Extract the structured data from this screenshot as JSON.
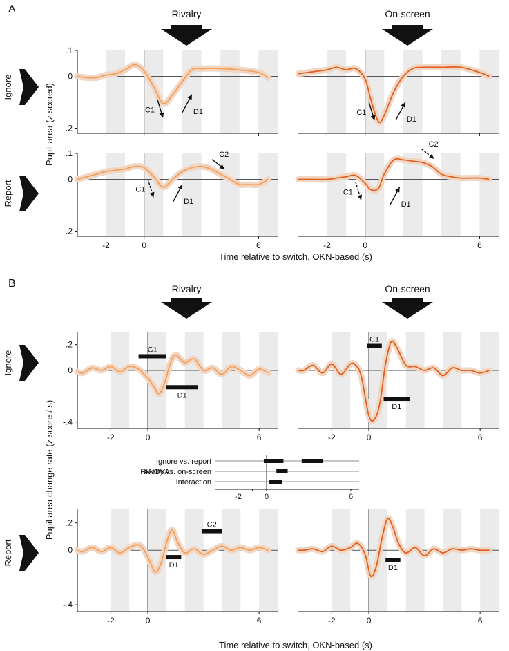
{
  "panel_labels": [
    "A",
    "B"
  ],
  "column_titles": [
    "Rivalry",
    "On-screen"
  ],
  "row_labels": [
    "Ignore",
    "Report"
  ],
  "colors": {
    "rivalry_line": "#f2a05a",
    "onscreen_line": "#e0601f",
    "band": "#f1d6c4",
    "stripe": "#ebebeb",
    "black": "#111111"
  },
  "anova": {
    "prefix": "ANOVA:",
    "rows": [
      "Ignore vs. report",
      "Rivalry vs. on-screen",
      "Interaction"
    ],
    "x_ticks": [
      "-2",
      "0",
      "6"
    ],
    "bars": [
      [
        [
          -0.2,
          1.2
        ],
        [
          2.5,
          4.0
        ]
      ],
      [
        [
          0.7,
          1.5
        ]
      ],
      [
        [
          0.2,
          1.1
        ]
      ]
    ]
  },
  "chart_data": [
    {
      "id": "A-rivalry-ignore",
      "type": "line",
      "panel": "A",
      "column": "Rivalry",
      "row": "Ignore",
      "xlabel": "Time relative to switch, OKN-based (s)",
      "ylabel": "Pupil area (z scored)",
      "xlim": [
        -3.5,
        7
      ],
      "ylim": [
        -0.22,
        0.1
      ],
      "x_ticks": [
        -2,
        0,
        6
      ],
      "x_tick_labels": [
        "",
        "",
        ""
      ],
      "y_ticks": [
        0.1,
        0,
        -0.2
      ],
      "y_tick_labels": [
        ".1",
        "0",
        "-.2"
      ],
      "series": [
        {
          "name": "Rivalry ignore",
          "x": [
            -3.5,
            -3,
            -2.5,
            -2,
            -1.5,
            -1,
            -0.5,
            0,
            0.5,
            1,
            1.5,
            2,
            2.5,
            3,
            4,
            5,
            6,
            6.5
          ],
          "y": [
            0,
            -0.005,
            -0.005,
            0.005,
            0.01,
            0.025,
            0.045,
            0.02,
            -0.04,
            -0.105,
            -0.07,
            -0.02,
            0.025,
            0.03,
            0.03,
            0.025,
            0.015,
            -0.005
          ]
        }
      ],
      "annotations": [
        {
          "label": "C1",
          "x": 0.7,
          "y": -0.09,
          "style": "solid",
          "dir": "down"
        },
        {
          "label": "D1",
          "x": 2.0,
          "y": -0.07,
          "style": "solid",
          "dir": "up"
        }
      ]
    },
    {
      "id": "A-onscreen-ignore",
      "type": "line",
      "panel": "A",
      "column": "On-screen",
      "row": "Ignore",
      "xlabel": "Time relative to switch, OKN-based (s)",
      "ylabel": "",
      "xlim": [
        -3.5,
        7
      ],
      "ylim": [
        -0.22,
        0.1
      ],
      "x_ticks": [
        -2,
        0,
        6
      ],
      "x_tick_labels": [
        "",
        "",
        ""
      ],
      "y_ticks": [],
      "y_tick_labels": [],
      "series": [
        {
          "name": "On-screen ignore",
          "x": [
            -3.5,
            -3,
            -2.5,
            -2,
            -1.5,
            -1,
            -0.5,
            0,
            0.3,
            0.7,
            1,
            1.5,
            2,
            2.5,
            3,
            4,
            5,
            6,
            6.5
          ],
          "y": [
            0.01,
            0.015,
            0.02,
            0.025,
            0.035,
            0.025,
            0.03,
            -0.01,
            -0.09,
            -0.175,
            -0.15,
            -0.06,
            0.0,
            0.03,
            0.035,
            0.035,
            0.035,
            0.015,
            0.0
          ]
        }
      ],
      "annotations": [
        {
          "label": "C1",
          "x": 0.2,
          "y": -0.1,
          "style": "solid",
          "dir": "down"
        },
        {
          "label": "D1",
          "x": 1.6,
          "y": -0.1,
          "style": "solid",
          "dir": "up"
        }
      ]
    },
    {
      "id": "A-rivalry-report",
      "type": "line",
      "panel": "A",
      "column": "Rivalry",
      "row": "Report",
      "xlabel": "Time relative to switch, OKN-based (s)",
      "ylabel": "",
      "xlim": [
        -3.5,
        7
      ],
      "ylim": [
        -0.22,
        0.1
      ],
      "x_ticks": [
        -2,
        0,
        6
      ],
      "x_tick_labels": [
        "-2",
        "0",
        "6"
      ],
      "y_ticks": [
        0.1,
        0,
        -0.2
      ],
      "y_tick_labels": [
        ".1",
        "0",
        "-.2"
      ],
      "series": [
        {
          "name": "Rivalry report",
          "x": [
            -3.5,
            -3,
            -2.5,
            -2,
            -1.5,
            -1,
            -0.5,
            0,
            0.5,
            1,
            1.5,
            2,
            2.5,
            3,
            3.5,
            4,
            4.5,
            5,
            5.5,
            6,
            6.5
          ],
          "y": [
            0,
            0.01,
            0.02,
            0.03,
            0.035,
            0.04,
            0.05,
            0.045,
            0.01,
            -0.03,
            0.0,
            0.03,
            0.045,
            0.05,
            0.04,
            0.02,
            0.0,
            -0.02,
            -0.02,
            -0.02,
            0.0
          ]
        }
      ],
      "annotations": [
        {
          "label": "C1",
          "x": 0.2,
          "y": 0.0,
          "style": "dashed",
          "dir": "down"
        },
        {
          "label": "D1",
          "x": 1.5,
          "y": -0.02,
          "style": "solid",
          "dir": "up"
        },
        {
          "label": "C2",
          "x": 4.0,
          "y": 0.05,
          "style": "solid",
          "dir": "down"
        }
      ]
    },
    {
      "id": "A-onscreen-report",
      "type": "line",
      "panel": "A",
      "column": "On-screen",
      "row": "Report",
      "xlabel": "Time relative to switch, OKN-based (s)",
      "ylabel": "",
      "xlim": [
        -3.5,
        7
      ],
      "ylim": [
        -0.22,
        0.1
      ],
      "x_ticks": [
        -2,
        0,
        6
      ],
      "x_tick_labels": [
        "-2",
        "0",
        "6"
      ],
      "y_ticks": [],
      "y_tick_labels": [],
      "series": [
        {
          "name": "On-screen report",
          "x": [
            -3.5,
            -3,
            -2,
            -1.5,
            -1,
            -0.5,
            0,
            0.3,
            0.7,
            1,
            1.5,
            2,
            2.5,
            3,
            3.5,
            4,
            4.5,
            5,
            5.5,
            6,
            6.5
          ],
          "y": [
            0,
            0,
            0,
            0.005,
            0.01,
            0.015,
            -0.015,
            -0.04,
            -0.035,
            0.02,
            0.075,
            0.075,
            0.07,
            0.065,
            0.05,
            0.02,
            0.01,
            0.005,
            0.005,
            0.005,
            0.0
          ]
        }
      ],
      "annotations": [
        {
          "label": "C1",
          "x": -0.5,
          "y": -0.01,
          "style": "dashed",
          "dir": "down"
        },
        {
          "label": "D1",
          "x": 1.3,
          "y": -0.03,
          "style": "solid",
          "dir": "up"
        },
        {
          "label": "C2",
          "x": 3.4,
          "y": 0.09,
          "style": "dashed",
          "dir": "down"
        }
      ]
    },
    {
      "id": "B-rivalry-ignore",
      "type": "line",
      "panel": "B",
      "column": "Rivalry",
      "row": "Ignore",
      "xlabel": "Time relative to switch, OKN-based (s)",
      "ylabel": "Pupil area change rate (z score / s)",
      "xlim": [
        -3.8,
        7
      ],
      "ylim": [
        -0.45,
        0.3
      ],
      "x_ticks": [
        -2,
        0,
        6
      ],
      "x_tick_labels": [
        "-2",
        "0",
        "6"
      ],
      "y_ticks": [
        0.2,
        0,
        -0.4
      ],
      "y_tick_labels": [
        ".2",
        "0",
        "-.4"
      ],
      "series": [
        {
          "name": "Rivalry ignore rate",
          "x": [
            -3.8,
            -3.5,
            -3,
            -2.5,
            -2,
            -1.5,
            -1,
            -0.5,
            0,
            0.3,
            0.6,
            0.9,
            1.2,
            1.5,
            2,
            2.5,
            3,
            3.5,
            4,
            4.5,
            5,
            5.5,
            6,
            6.5
          ],
          "y": [
            -0.01,
            -0.02,
            0.02,
            0.0,
            0.03,
            -0.01,
            0.03,
            0.01,
            -0.06,
            -0.12,
            -0.18,
            -0.1,
            0.05,
            0.12,
            0.06,
            0.09,
            0.0,
            0.02,
            -0.03,
            0.03,
            0.0,
            -0.04,
            0.01,
            -0.02
          ]
        }
      ],
      "bars": [
        {
          "label": "C1",
          "start": -0.5,
          "end": 1.0,
          "y": 0.11
        },
        {
          "label": "D1",
          "start": 1.0,
          "end": 2.7,
          "y": -0.13
        }
      ]
    },
    {
      "id": "B-onscreen-ignore",
      "type": "line",
      "panel": "B",
      "column": "On-screen",
      "row": "Ignore",
      "xlabel": "Time relative to switch, OKN-based (s)",
      "ylabel": "",
      "xlim": [
        -3.8,
        7
      ],
      "ylim": [
        -0.45,
        0.3
      ],
      "x_ticks": [
        -2,
        0,
        6
      ],
      "x_tick_labels": [
        "-2",
        "0",
        "6"
      ],
      "y_ticks": [],
      "y_tick_labels": [],
      "series": [
        {
          "name": "On-screen ignore rate",
          "x": [
            -3.8,
            -3.5,
            -3,
            -2.5,
            -2,
            -1.5,
            -1,
            -0.7,
            -0.4,
            0,
            0.3,
            0.6,
            0.9,
            1.2,
            1.5,
            2,
            2.5,
            3,
            3.5,
            4,
            4.5,
            5,
            5.5,
            6,
            6.5
          ],
          "y": [
            0,
            0.0,
            0.04,
            -0.02,
            0.05,
            -0.03,
            0.05,
            0.04,
            -0.05,
            -0.35,
            -0.38,
            -0.25,
            0.05,
            0.22,
            0.18,
            0.04,
            0.03,
            0.0,
            0.02,
            -0.04,
            0.02,
            0.0,
            0.0,
            -0.02,
            0.0
          ]
        }
      ],
      "bars": [
        {
          "label": "C1",
          "start": -0.1,
          "end": 0.7,
          "y": 0.19
        },
        {
          "label": "D1",
          "start": 0.8,
          "end": 2.2,
          "y": -0.22
        }
      ]
    },
    {
      "id": "B-rivalry-report",
      "type": "line",
      "panel": "B",
      "column": "Rivalry",
      "row": "Report",
      "xlabel": "Time relative to switch, OKN-based (s)",
      "ylabel": "",
      "xlim": [
        -3.8,
        7
      ],
      "ylim": [
        -0.45,
        0.3
      ],
      "x_ticks": [
        -2,
        0,
        6
      ],
      "x_tick_labels": [
        "-2",
        "0",
        "6"
      ],
      "y_ticks": [
        0.2,
        0,
        -0.4
      ],
      "y_tick_labels": [
        ".2",
        "0",
        "-.4"
      ],
      "series": [
        {
          "name": "Rivalry report rate",
          "x": [
            -3.8,
            -3.5,
            -3,
            -2.5,
            -2,
            -1.5,
            -1,
            -0.5,
            -0.2,
            0.1,
            0.4,
            0.7,
            1.0,
            1.3,
            1.6,
            2,
            2.5,
            3,
            3.5,
            4,
            4.5,
            5,
            5.5,
            6,
            6.5
          ],
          "y": [
            0,
            -0.01,
            0.02,
            -0.01,
            0.02,
            -0.02,
            0.02,
            0.04,
            0.0,
            -0.08,
            -0.16,
            -0.1,
            0.05,
            0.15,
            0.06,
            -0.02,
            0.01,
            -0.03,
            0.0,
            0.03,
            0.0,
            0.02,
            0.0,
            0.02,
            0.0
          ]
        }
      ],
      "bars": [
        {
          "label": "C2",
          "start": 2.9,
          "end": 4.0,
          "y": 0.14
        },
        {
          "label": "D1",
          "start": 1.0,
          "end": 1.8,
          "y": -0.05
        }
      ]
    },
    {
      "id": "B-onscreen-report",
      "type": "line",
      "panel": "B",
      "column": "On-screen",
      "row": "Report",
      "xlabel": "Time relative to switch, OKN-based (s)",
      "ylabel": "",
      "xlim": [
        -3.8,
        7
      ],
      "ylim": [
        -0.45,
        0.3
      ],
      "x_ticks": [
        -2,
        0,
        6
      ],
      "x_tick_labels": [
        "-2",
        "0",
        "6"
      ],
      "y_ticks": [],
      "y_tick_labels": [],
      "series": [
        {
          "name": "On-screen report rate",
          "x": [
            -3.8,
            -3.5,
            -3,
            -2.5,
            -2,
            -1.5,
            -1,
            -0.6,
            -0.2,
            0.1,
            0.4,
            0.7,
            1.0,
            1.3,
            1.6,
            2,
            2.5,
            3,
            3.5,
            4,
            4.5,
            5,
            5.5,
            6,
            6.5
          ],
          "y": [
            0,
            0.0,
            0.01,
            -0.01,
            0.03,
            0.0,
            0.02,
            0.05,
            -0.03,
            -0.19,
            -0.12,
            0.08,
            0.23,
            0.17,
            0.05,
            -0.02,
            0.02,
            -0.04,
            0.01,
            -0.02,
            0.01,
            0.0,
            0.01,
            0.0,
            0.0
          ]
        }
      ],
      "bars": [
        {
          "label": "D1",
          "start": 0.9,
          "end": 1.7,
          "y": -0.07
        }
      ]
    }
  ],
  "shared_xlabel": "Time relative to switch, OKN-based (s)"
}
